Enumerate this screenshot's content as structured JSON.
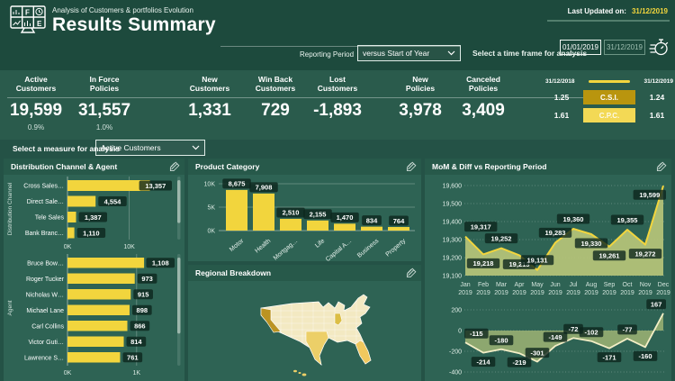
{
  "header": {
    "app_subtitle": "Analysis of Customers & portfolios Evolution",
    "title": "Results Summary",
    "last_updated_label": "Last Updated on:",
    "last_updated_value": "31/12/2019"
  },
  "filters": {
    "reporting_period_label": "Reporting Period",
    "reporting_period_value": "versus Start of Year",
    "time_frame_label": "Select a time frame for analysis",
    "time_frame_start": "01/01/2019",
    "time_frame_end": "31/12/2019",
    "measure_label": "Select a measure for analysis",
    "measure_value": "Active Customers"
  },
  "kpis": [
    {
      "title_lines": "Active\nCustomers",
      "value": "19,599",
      "sub": "0.9%"
    },
    {
      "title_lines": "In Force\nPolicies",
      "value": "31,557",
      "sub": "1.0%"
    },
    {
      "title_lines": "New\nCustomers",
      "value": "1,331",
      "sub": ""
    },
    {
      "title_lines": "Win Back\nCustomers",
      "value": "729",
      "sub": ""
    },
    {
      "title_lines": "Lost\nCustomers",
      "value": "-1,893",
      "sub": ""
    },
    {
      "title_lines": "New\nPolicies",
      "value": "3,978",
      "sub": ""
    },
    {
      "title_lines": "Canceled\nPolicies",
      "value": "3,409",
      "sub": ""
    }
  ],
  "comparison": {
    "date_left": "31/12/2018",
    "date_right": "31/12/2019",
    "rows": [
      {
        "left": "1.25",
        "label": "C.S.I.",
        "right": "1.24"
      },
      {
        "left": "1.61",
        "label": "C.P.C.",
        "right": "1.61"
      }
    ]
  },
  "panels": {
    "left_title": "Distribution Channel & Agent",
    "product_title": "Product Category",
    "region_title": "Regional Breakdown",
    "mom_title": "MoM & Diff vs Reporting Period"
  },
  "icons": {
    "logo": "dashboard-monitor-icon",
    "time_frame": "stopwatch-icon",
    "panel_corner": "pencil-edit-icon",
    "dropdown": "chevron-down-icon"
  },
  "chart_data": [
    {
      "id": "distribution_channel",
      "type": "bar",
      "orientation": "horizontal",
      "axis_title": "Distribution Channel",
      "categories": [
        "Cross Sales…",
        "Direct Sale…",
        "Tele Sales",
        "Bank Branc…"
      ],
      "values": [
        13357,
        4554,
        1387,
        1110
      ],
      "value_labels": [
        "13,357",
        "4,554",
        "1,387",
        "1,110"
      ],
      "xlim": [
        0,
        14000
      ],
      "x_ticks": [
        {
          "v": 0,
          "label": "0K"
        },
        {
          "v": 10000,
          "label": "10K"
        }
      ]
    },
    {
      "id": "agent",
      "type": "bar",
      "orientation": "horizontal",
      "axis_title": "Agent",
      "categories": [
        "Bruce Bow…",
        "Roger Tucker",
        "Nicholas W…",
        "Michael Lane",
        "Carl Collins",
        "Victor Guti…",
        "Lawrence S…"
      ],
      "values": [
        1108,
        973,
        915,
        898,
        866,
        814,
        761
      ],
      "value_labels": [
        "1,108",
        "973",
        "915",
        "898",
        "866",
        "814",
        "761"
      ],
      "xlim": [
        0,
        1250
      ],
      "x_ticks": [
        {
          "v": 0,
          "label": "0K"
        },
        {
          "v": 1000,
          "label": "1K"
        }
      ]
    },
    {
      "id": "product_category",
      "type": "bar",
      "orientation": "vertical",
      "title": "Product Category",
      "categories": [
        "Motor",
        "Health",
        "Mortgag…",
        "Life",
        "Capital A…",
        "Business",
        "Property"
      ],
      "values": [
        8675,
        7908,
        2510,
        2155,
        1470,
        834,
        764
      ],
      "value_labels": [
        "8,675",
        "7,908",
        "2,510",
        "2,155",
        "1,470",
        "834",
        "764"
      ],
      "ylim": [
        0,
        10500
      ],
      "y_ticks": [
        {
          "v": 0,
          "label": "0K"
        },
        {
          "v": 5000,
          "label": "5K"
        },
        {
          "v": 10000,
          "label": "10K"
        }
      ]
    },
    {
      "id": "mom_active_customers",
      "type": "area",
      "title": "MoM & Diff vs Reporting Period",
      "x": [
        "Jan",
        "Feb",
        "Mar",
        "Apr",
        "May",
        "Jun",
        "Jul",
        "Aug",
        "Sep",
        "Oct",
        "Nov",
        "Dec"
      ],
      "x_year": "2019",
      "values": [
        19317,
        19218,
        19252,
        19213,
        19131,
        19283,
        19360,
        19330,
        19261,
        19355,
        19272,
        19599
      ],
      "labels": [
        "19,317",
        "19,218",
        "19,252",
        "19,213",
        "19,131",
        "19,283",
        "19,360",
        "19,330",
        "19,261",
        "19,355",
        "19,272",
        "19,599"
      ],
      "label_side": [
        "above",
        "below",
        "above",
        "below",
        "above",
        "above",
        "above",
        "below",
        "below",
        "above",
        "below",
        "below"
      ],
      "ylim": [
        19100,
        19600
      ],
      "y_ticks": [
        19600,
        19500,
        19400,
        19300,
        19200,
        19100
      ],
      "y_tick_labels": [
        "19,600",
        "19,500",
        "19,400",
        "19,300",
        "19,200",
        "19,100"
      ],
      "grid": "dotted"
    },
    {
      "id": "diff_vs_reporting_period",
      "type": "area",
      "values": [
        -115,
        -214,
        -180,
        -219,
        -301,
        -149,
        -72,
        -102,
        -171,
        -77,
        -160,
        167
      ],
      "labels": [
        "-115",
        "-214",
        "-180",
        "-219",
        "-301",
        "-149",
        "-72",
        "-102",
        "-171",
        "-77",
        "-160",
        "167"
      ],
      "label_side": [
        "above",
        "below",
        "above",
        "below",
        "above",
        "above",
        "above",
        "above",
        "below",
        "above",
        "below",
        "above"
      ],
      "ylim": [
        -400,
        200
      ],
      "y_ticks": [
        200,
        0,
        -200,
        -400
      ],
      "y_tick_labels": [
        "200",
        "0",
        "-200",
        "-400"
      ],
      "grid": "dotted"
    },
    {
      "id": "regional_breakdown",
      "type": "map",
      "region": "United States",
      "darkest_state": "California",
      "medium_states": [
        "Texas",
        "Florida",
        "Illinois"
      ]
    }
  ],
  "colors": {
    "page_bg": "#245246",
    "header_bg": "#1d4a3d",
    "band_bg": "#2a5b4c",
    "panel_bg": "#2e6354",
    "panel_header_bg": "#27594a",
    "accent_yellow": "#f2d53d",
    "area_fill": "#b7c47a",
    "diff_line": "#f3eec6",
    "csi_box": "#b9950e",
    "cpc_box": "#f3d955",
    "map_base": "#f3e9c2",
    "map_medium": "#eccf68",
    "map_florida": "#f0c85e",
    "map_illinois": "#dcbe45",
    "map_dark": "#bb9322"
  }
}
